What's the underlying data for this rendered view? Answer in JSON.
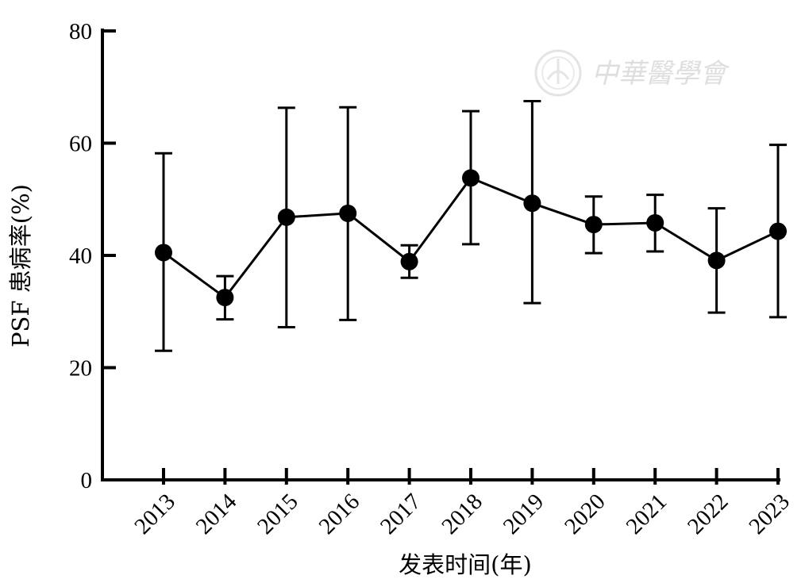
{
  "chart_data": {
    "type": "line",
    "title": "",
    "xlabel": "发表时间(年)",
    "ylabel": "PSF 患病率(%)",
    "ylim": [
      0,
      80
    ],
    "yticks": [
      "0",
      "20",
      "40",
      "60",
      "80"
    ],
    "categories": [
      "2013",
      "2014",
      "2015",
      "2016",
      "2017",
      "2018",
      "2019",
      "2020",
      "2021",
      "2022",
      "2023"
    ],
    "series": [
      {
        "values": [
          40.5,
          32.5,
          46.8,
          47.5,
          38.9,
          53.8,
          49.3,
          45.5,
          45.8,
          39.1,
          44.3
        ],
        "error_low": [
          23.0,
          28.6,
          27.2,
          28.5,
          36.0,
          42.0,
          31.5,
          40.4,
          40.7,
          29.8,
          29.0
        ],
        "error_high": [
          58.2,
          36.3,
          66.3,
          66.4,
          41.8,
          65.7,
          67.5,
          50.5,
          50.8,
          48.4,
          59.7
        ]
      }
    ],
    "grid": false,
    "legend": "none",
    "line_color": "#000000",
    "marker_color": "#000000"
  },
  "watermark": {
    "text": "中華醫學會"
  }
}
